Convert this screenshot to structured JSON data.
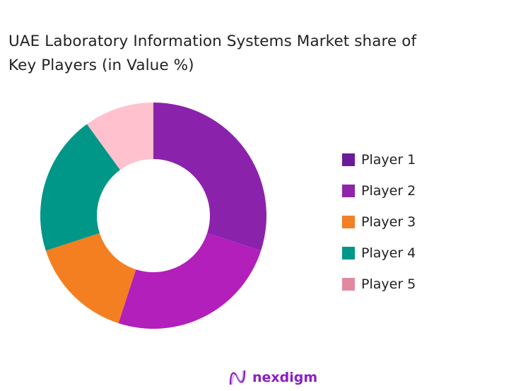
{
  "chart_data": {
    "type": "pie",
    "subtype": "donut",
    "title": "UAE Laboratory Information Systems Market share of Key Players (in Value %)",
    "title_lines": [
      "UAE Laboratory Information Systems Market share of",
      "Key Players (in Value %)"
    ],
    "categories": [
      "Player 1",
      "Player 2",
      "Player 3",
      "Player 4",
      "Player 5"
    ],
    "values": [
      30,
      25,
      15,
      20,
      10
    ],
    "slice_colors": [
      "#8B22AC",
      "#B21FBB",
      "#F47F20",
      "#009688",
      "#FFC1CE"
    ],
    "legend_colors": [
      "#6A1B9A",
      "#8E24AA",
      "#F57F25",
      "#00968A",
      "#E08AA0"
    ],
    "legend_position": "right"
  },
  "branding": {
    "logo_text": "nexdigm"
  }
}
